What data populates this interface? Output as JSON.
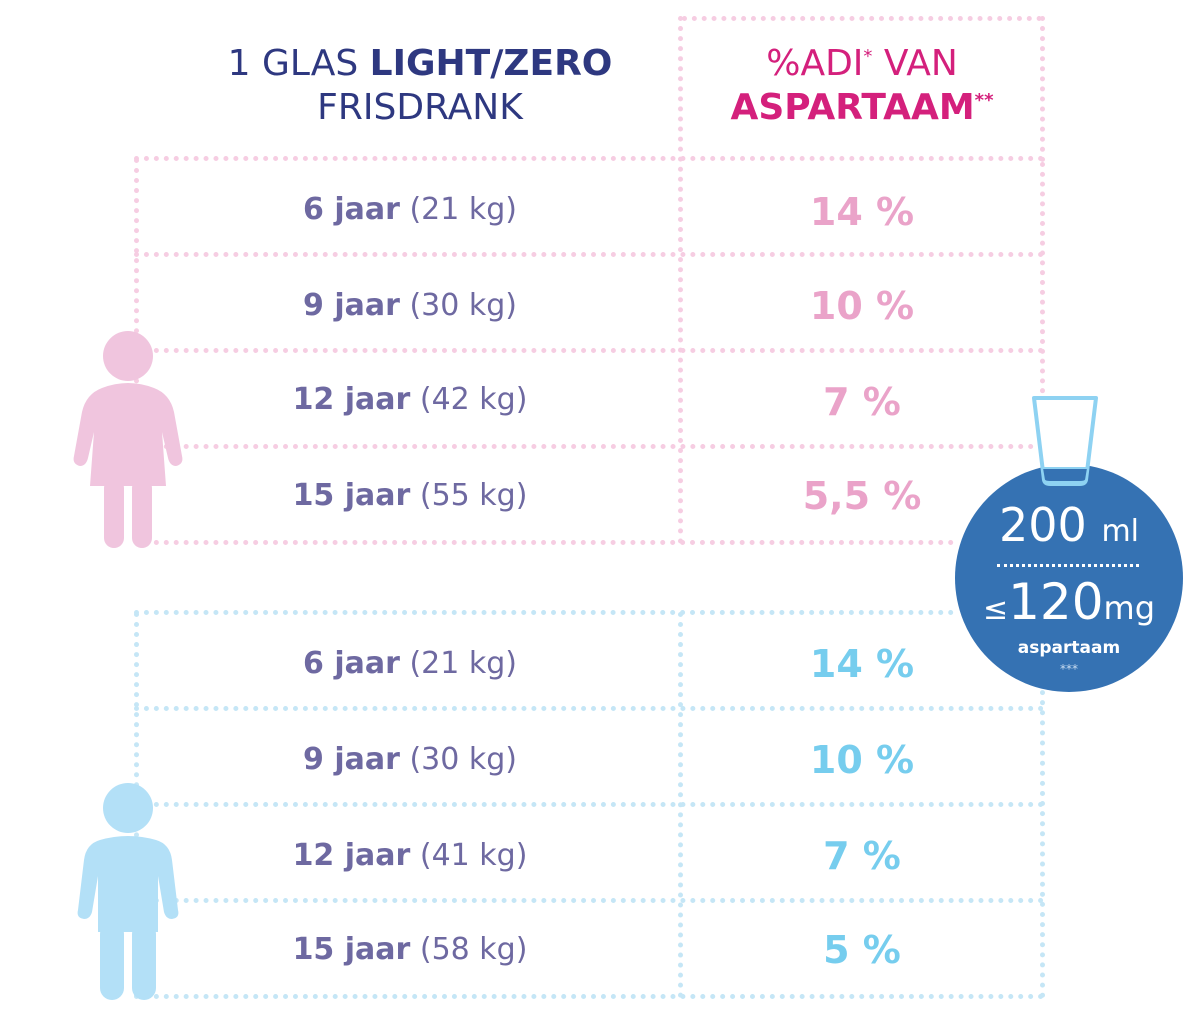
{
  "header": {
    "left_line1_prefix": "1 GLAS ",
    "left_line1_bold": "LIGHT/ZERO",
    "left_line2": "FRISDRANK",
    "right_line1": "%ADI",
    "right_line1_sup": "*",
    "right_line1_suffix": " VAN",
    "right_line2": "ASPARTAAM",
    "right_line2_sup": "**"
  },
  "girls": {
    "rows": [
      {
        "age": "6 jaar",
        "weight": "(21 kg)",
        "pct": "14 %"
      },
      {
        "age": "9 jaar",
        "weight": "(30 kg)",
        "pct": "10 %"
      },
      {
        "age": "12 jaar",
        "weight": "(42 kg)",
        "pct": "7 %"
      },
      {
        "age": "15 jaar",
        "weight": "(55 kg)",
        "pct": "5,5 %"
      }
    ]
  },
  "boys": {
    "rows": [
      {
        "age": "6 jaar",
        "weight": "(21 kg)",
        "pct": "14 %"
      },
      {
        "age": "9 jaar",
        "weight": "(30 kg)",
        "pct": "10 %"
      },
      {
        "age": "12 jaar",
        "weight": "(41 kg)",
        "pct": "7 %"
      },
      {
        "age": "15 jaar",
        "weight": "(58 kg)",
        "pct": "5 %"
      }
    ]
  },
  "badge": {
    "volume": "200",
    "volume_unit": "ml",
    "le": "≤",
    "amount": "120",
    "amount_unit": "mg",
    "substance": "aspartaam",
    "footnote": "***"
  },
  "colors": {
    "navy": "#2e3880",
    "magenta": "#d4207c",
    "pink_light": "#eaa3c9",
    "blue_light": "#76cdee",
    "badge_blue": "#3572b3",
    "text_purple": "#6e69a1"
  },
  "icons": {
    "girl": "girl-figure-icon",
    "boy": "boy-figure-icon",
    "glass": "glass-icon"
  }
}
